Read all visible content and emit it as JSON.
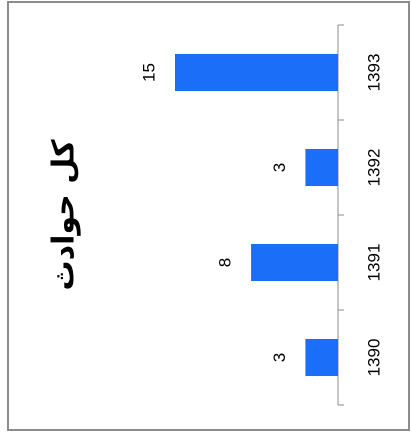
{
  "chart_data": {
    "type": "bar",
    "orientation": "horizontal",
    "title": "کل حوادث",
    "categories": [
      "1390",
      "1391",
      "1392",
      "1393"
    ],
    "values": [
      3,
      8,
      3,
      15
    ],
    "color": "#1a6ef7"
  }
}
